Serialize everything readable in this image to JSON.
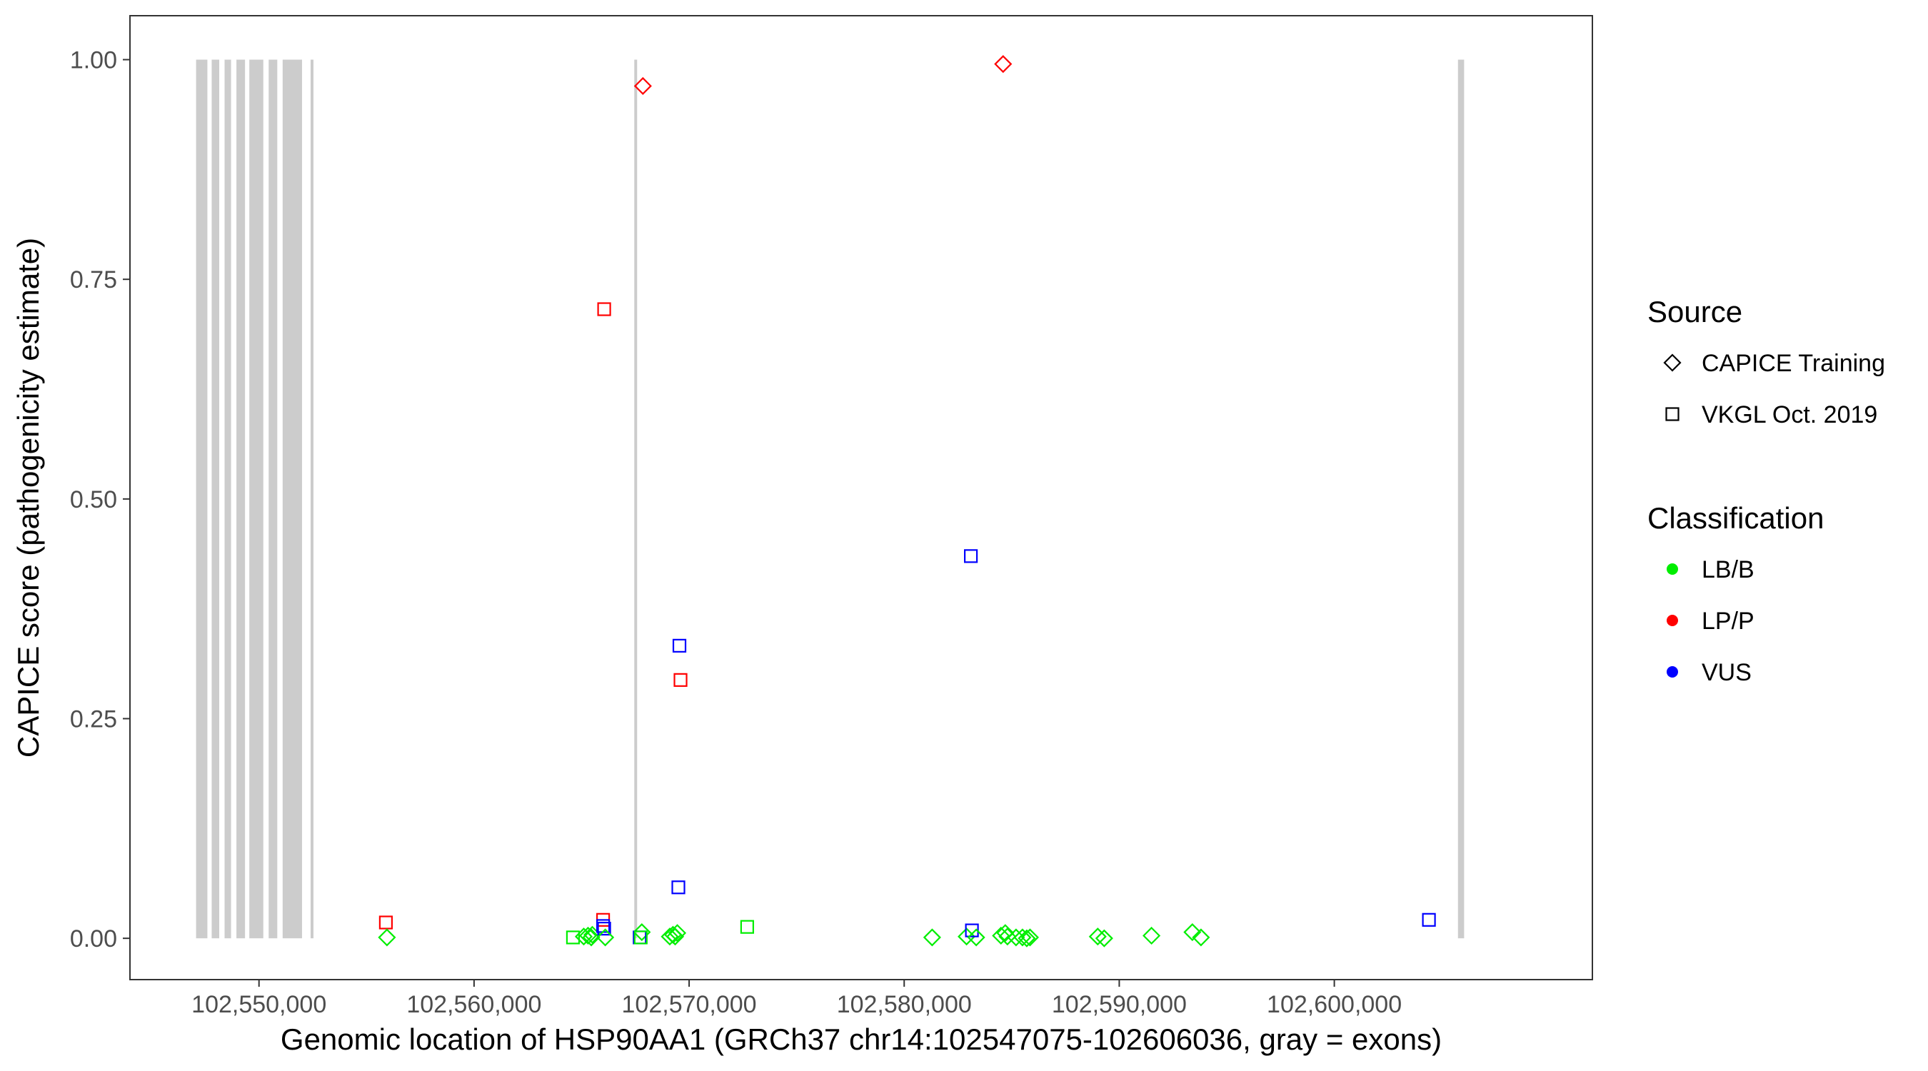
{
  "chart_data": {
    "type": "scatter",
    "xlabel": "Genomic location of HSP90AA1 (GRCh37 chr14:102547075-102606036, gray = exons)",
    "ylabel": "CAPICE score (pathogenicity estimate)",
    "xlim": [
      102544000,
      102612000
    ],
    "ylim": [
      -0.047,
      1.05
    ],
    "x_ticks": [
      102550000,
      102560000,
      102570000,
      102580000,
      102590000,
      102600000
    ],
    "x_tick_labels": [
      "102,550,000",
      "102,560,000",
      "102,570,000",
      "102,580,000",
      "102,590,000",
      "102,600,000"
    ],
    "y_ticks": [
      0,
      0.25,
      0.5,
      0.75,
      1
    ],
    "y_tick_labels": [
      "0.00",
      "0.25",
      "0.50",
      "0.75",
      "1.00"
    ],
    "grid": false,
    "legend_position": "right",
    "exons": [
      {
        "start": 102547075,
        "end": 102547600
      },
      {
        "start": 102547800,
        "end": 102548150
      },
      {
        "start": 102548400,
        "end": 102548700
      },
      {
        "start": 102548950,
        "end": 102549350
      },
      {
        "start": 102549550,
        "end": 102550200
      },
      {
        "start": 102550450,
        "end": 102550850
      },
      {
        "start": 102551100,
        "end": 102552000
      },
      {
        "start": 102552400,
        "end": 102552500
      },
      {
        "start": 102567450,
        "end": 102567560
      },
      {
        "start": 102605750,
        "end": 102606036
      }
    ],
    "legend": {
      "source": {
        "title": "Source",
        "items": [
          {
            "label": "CAPICE Training",
            "shape": "diamond"
          },
          {
            "label": "VKGL Oct. 2019",
            "shape": "square"
          }
        ]
      },
      "classification": {
        "title": "Classification",
        "items": [
          {
            "label": "LB/B",
            "color": "#00ee00"
          },
          {
            "label": "LP/P",
            "color": "#ff0000"
          },
          {
            "label": "VUS",
            "color": "#0000ff"
          }
        ]
      }
    },
    "points": [
      {
        "x": 102555900,
        "y": 0.018,
        "source": "VKGL Oct. 2019",
        "class": "LP/P"
      },
      {
        "x": 102555950,
        "y": 0.001,
        "source": "CAPICE Training",
        "class": "LB/B"
      },
      {
        "x": 102564600,
        "y": 0.001,
        "source": "VKGL Oct. 2019",
        "class": "LB/B"
      },
      {
        "x": 102565100,
        "y": 0.002,
        "source": "CAPICE Training",
        "class": "LB/B"
      },
      {
        "x": 102565300,
        "y": 0.003,
        "source": "CAPICE Training",
        "class": "LB/B"
      },
      {
        "x": 102565450,
        "y": 0.001,
        "source": "CAPICE Training",
        "class": "LB/B"
      },
      {
        "x": 102565500,
        "y": 0.004,
        "source": "CAPICE Training",
        "class": "LB/B"
      },
      {
        "x": 102566050,
        "y": 0.716,
        "source": "VKGL Oct. 2019",
        "class": "LP/P"
      },
      {
        "x": 102566000,
        "y": 0.021,
        "source": "VKGL Oct. 2019",
        "class": "LP/P"
      },
      {
        "x": 102566000,
        "y": 0.014,
        "source": "VKGL Oct. 2019",
        "class": "VUS"
      },
      {
        "x": 102566050,
        "y": 0.011,
        "source": "VKGL Oct. 2019",
        "class": "VUS"
      },
      {
        "x": 102566100,
        "y": 0.001,
        "source": "CAPICE Training",
        "class": "LB/B"
      },
      {
        "x": 102567850,
        "y": 0.97,
        "source": "CAPICE Training",
        "class": "LP/P"
      },
      {
        "x": 102567800,
        "y": 0.007,
        "source": "CAPICE Training",
        "class": "LB/B"
      },
      {
        "x": 102567700,
        "y": 0.001,
        "source": "VKGL Oct. 2019",
        "class": "VUS"
      },
      {
        "x": 102567750,
        "y": 0.001,
        "source": "VKGL Oct. 2019",
        "class": "LB/B"
      },
      {
        "x": 102569100,
        "y": 0.002,
        "source": "CAPICE Training",
        "class": "LB/B"
      },
      {
        "x": 102569250,
        "y": 0.004,
        "source": "CAPICE Training",
        "class": "LB/B"
      },
      {
        "x": 102569350,
        "y": 0.002,
        "source": "CAPICE Training",
        "class": "LB/B"
      },
      {
        "x": 102569450,
        "y": 0.006,
        "source": "CAPICE Training",
        "class": "LB/B"
      },
      {
        "x": 102569500,
        "y": 0.058,
        "source": "VKGL Oct. 2019",
        "class": "VUS"
      },
      {
        "x": 102569550,
        "y": 0.333,
        "source": "VKGL Oct. 2019",
        "class": "VUS"
      },
      {
        "x": 102569600,
        "y": 0.294,
        "source": "VKGL Oct. 2019",
        "class": "LP/P"
      },
      {
        "x": 102572700,
        "y": 0.013,
        "source": "VKGL Oct. 2019",
        "class": "LB/B"
      },
      {
        "x": 102581300,
        "y": 0.001,
        "source": "CAPICE Training",
        "class": "LB/B"
      },
      {
        "x": 102582900,
        "y": 0.002,
        "source": "CAPICE Training",
        "class": "LB/B"
      },
      {
        "x": 102583100,
        "y": 0.435,
        "source": "VKGL Oct. 2019",
        "class": "VUS"
      },
      {
        "x": 102583150,
        "y": 0.009,
        "source": "VKGL Oct. 2019",
        "class": "VUS"
      },
      {
        "x": 102583350,
        "y": 0.001,
        "source": "CAPICE Training",
        "class": "LB/B"
      },
      {
        "x": 102584600,
        "y": 0.995,
        "source": "CAPICE Training",
        "class": "LP/P"
      },
      {
        "x": 102584500,
        "y": 0.003,
        "source": "CAPICE Training",
        "class": "LB/B"
      },
      {
        "x": 102584700,
        "y": 0.006,
        "source": "CAPICE Training",
        "class": "LB/B"
      },
      {
        "x": 102584800,
        "y": 0.002,
        "source": "CAPICE Training",
        "class": "LB/B"
      },
      {
        "x": 102585200,
        "y": 0.001,
        "source": "CAPICE Training",
        "class": "LB/B"
      },
      {
        "x": 102585500,
        "y": 0.001,
        "source": "CAPICE Training",
        "class": "LB/B"
      },
      {
        "x": 102585700,
        "y": 0.0,
        "source": "CAPICE Training",
        "class": "LB/B"
      },
      {
        "x": 102585850,
        "y": 0.001,
        "source": "CAPICE Training",
        "class": "LB/B"
      },
      {
        "x": 102589000,
        "y": 0.002,
        "source": "CAPICE Training",
        "class": "LB/B"
      },
      {
        "x": 102589300,
        "y": 0.0,
        "source": "CAPICE Training",
        "class": "LB/B"
      },
      {
        "x": 102591500,
        "y": 0.003,
        "source": "CAPICE Training",
        "class": "LB/B"
      },
      {
        "x": 102593400,
        "y": 0.007,
        "source": "CAPICE Training",
        "class": "LB/B"
      },
      {
        "x": 102593800,
        "y": 0.001,
        "source": "CAPICE Training",
        "class": "LB/B"
      },
      {
        "x": 102604400,
        "y": 0.021,
        "source": "VKGL Oct. 2019",
        "class": "VUS"
      }
    ]
  }
}
